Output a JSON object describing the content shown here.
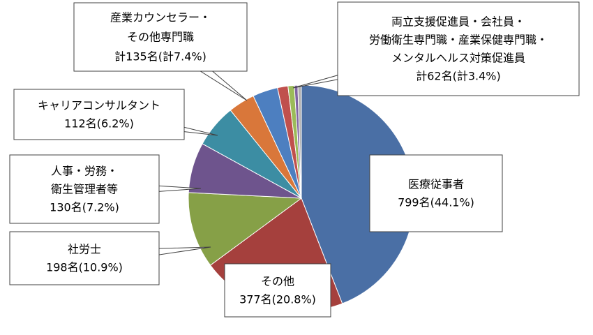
{
  "chart_data": {
    "type": "pie",
    "colors": {
      "medical": "#4A6FA5",
      "other": "#A5403D",
      "sharoushi": "#86A047",
      "hr": "#6E548D",
      "career": "#3C8DA3",
      "counselor_group": "#D9773A",
      "support_group": "#4D7FC0",
      "minor_red": "#C0504D",
      "minor_green": "#9BBB59",
      "minor_purple": "#8064A2",
      "minor_grey": "#B0B0B0",
      "edge": "#ffffff"
    },
    "slices": [
      {
        "id": "medical",
        "value": 44.1,
        "color_key": "medical",
        "label_lines": [
          "医療従事者",
          "799名(44.1%)"
        ]
      },
      {
        "id": "other",
        "value": 20.8,
        "color_key": "other",
        "label_lines": [
          "その他",
          "377名(20.8%)"
        ]
      },
      {
        "id": "sharoushi",
        "value": 10.9,
        "color_key": "sharoushi",
        "label_lines": [
          "社労士",
          "198名(10.9%)"
        ]
      },
      {
        "id": "hr",
        "value": 7.2,
        "color_key": "hr",
        "label_lines": [
          "人事・労務・",
          "衛生管理者等",
          "130名(7.2%)"
        ]
      },
      {
        "id": "career",
        "value": 6.2,
        "color_key": "career",
        "label_lines": [
          "キャリアコンサルタント",
          "112名(6.2%)"
        ]
      },
      {
        "id": "counselor",
        "value": 3.8,
        "color_key": "counselor_group",
        "label_lines": []
      },
      {
        "id": "counselor2",
        "value": 3.6,
        "color_key": "support_group",
        "label_lines": []
      },
      {
        "id": "support_a",
        "value": 1.5,
        "color_key": "minor_red",
        "label_lines": []
      },
      {
        "id": "support_b",
        "value": 0.9,
        "color_key": "minor_green",
        "label_lines": []
      },
      {
        "id": "support_c",
        "value": 0.5,
        "color_key": "minor_purple",
        "label_lines": []
      },
      {
        "id": "support_d",
        "value": 0.5,
        "color_key": "minor_grey",
        "label_lines": []
      }
    ],
    "group_labels": [
      {
        "id": "counselor_group",
        "label_lines": [
          "産業カウンセラー・",
          "その他専門職",
          "計135名(計7.4%)"
        ]
      },
      {
        "id": "support_group",
        "label_lines": [
          "両立支援促進員・会社員・",
          "労働衛生専門職・産業保健専門職・",
          "メンタルヘルス対策促進員",
          "計62名(計3.4%)"
        ]
      }
    ],
    "title": "",
    "legend": "none"
  }
}
